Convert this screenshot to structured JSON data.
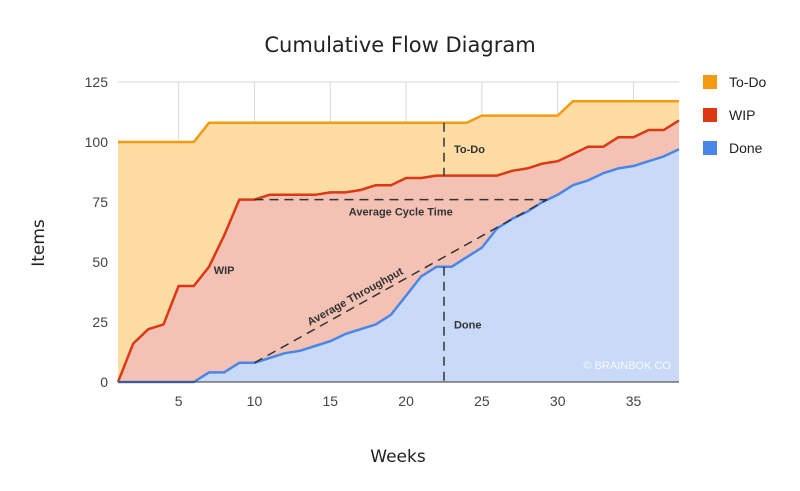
{
  "chart_data": {
    "type": "area",
    "title": "Cumulative Flow Diagram",
    "xlabel": "Weeks",
    "ylabel": "Items",
    "xlim": [
      1,
      38
    ],
    "ylim": [
      0,
      125
    ],
    "x_ticks": [
      5,
      10,
      15,
      20,
      25,
      30,
      35
    ],
    "y_ticks": [
      0,
      25,
      50,
      75,
      100,
      125
    ],
    "grid": true,
    "stacked": false,
    "legend_position": "right",
    "x": [
      1,
      2,
      3,
      4,
      5,
      6,
      7,
      8,
      9,
      10,
      11,
      12,
      13,
      14,
      15,
      16,
      17,
      18,
      19,
      20,
      21,
      22,
      23,
      24,
      25,
      26,
      27,
      28,
      29,
      30,
      31,
      32,
      33,
      34,
      35,
      36,
      37,
      38
    ],
    "series": [
      {
        "name": "To-Do",
        "line_color": "#f29b11",
        "fill_color": "#fedca4",
        "values": [
          100,
          100,
          100,
          100,
          100,
          100,
          108,
          108,
          108,
          108,
          108,
          108,
          108,
          108,
          108,
          108,
          108,
          108,
          108,
          108,
          108,
          108,
          108,
          108,
          111,
          111,
          111,
          111,
          111,
          111,
          117,
          117,
          117,
          117,
          117,
          117,
          117,
          117
        ]
      },
      {
        "name": "WIP",
        "line_color": "#dc3912",
        "fill_color": "#f4c2b5",
        "values": [
          0,
          16,
          22,
          24,
          40,
          40,
          48,
          61,
          76,
          76,
          78,
          78,
          78,
          78,
          79,
          79,
          80,
          82,
          82,
          85,
          85,
          86,
          86,
          86,
          86,
          86,
          88,
          89,
          91,
          92,
          95,
          98,
          98,
          102,
          102,
          105,
          105,
          109
        ]
      },
      {
        "name": "Done",
        "line_color": "#4a86e8",
        "fill_color": "#c9daf8",
        "values": [
          0,
          0,
          0,
          0,
          0,
          0,
          4,
          4,
          8,
          8,
          10,
          12,
          13,
          15,
          17,
          20,
          22,
          24,
          28,
          36,
          44,
          48,
          48,
          52,
          56,
          64,
          68,
          71,
          75,
          78,
          82,
          84,
          87,
          89,
          90,
          92,
          94,
          97
        ]
      }
    ],
    "annotations": [
      {
        "text": "To-Do",
        "kind": "vertical-dashed",
        "x": 22.5,
        "y_from": 86,
        "y_to": 108
      },
      {
        "text": "WIP",
        "kind": "label",
        "x": 8,
        "y": 45
      },
      {
        "text": "Average Cycle Time",
        "kind": "horizontal-dashed",
        "y": 76,
        "x_from": 10,
        "x_to": 29.3
      },
      {
        "text": "Average Throughput",
        "kind": "diagonal-dashed",
        "x_from": 10,
        "y_from": 8,
        "x_to": 29.3,
        "y_to": 76
      },
      {
        "text": "Done",
        "kind": "vertical-dashed",
        "x": 22.5,
        "y_from": 0,
        "y_to": 48
      }
    ],
    "watermark": "© BRAINBOK CO"
  }
}
